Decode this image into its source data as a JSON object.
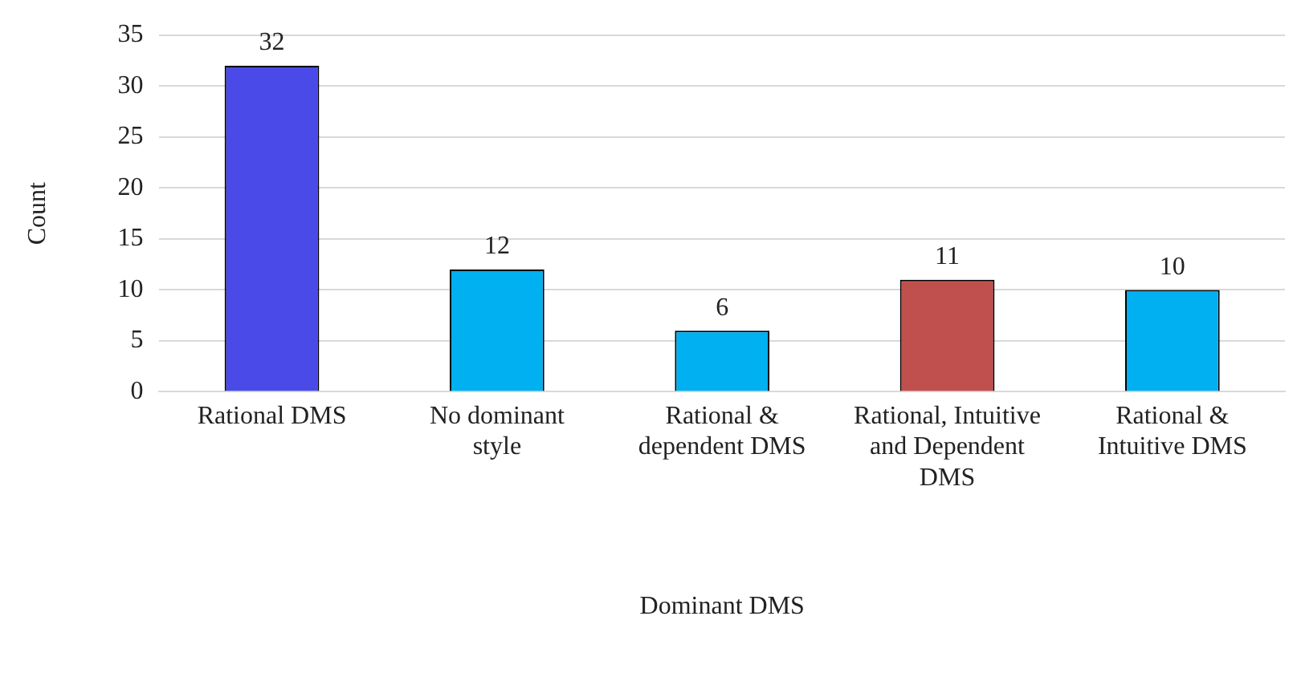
{
  "chart_data": {
    "type": "bar",
    "xlabel": "Dominant DMS",
    "ylabel": "Count",
    "categories": [
      "Rational DMS",
      "No dominant style",
      "Rational & dependent DMS",
      "Rational, Intuitive and Dependent DMS",
      "Rational & Intuitive DMS"
    ],
    "values": [
      32,
      12,
      6,
      11,
      10
    ],
    "colors": [
      "#4a4ae8",
      "#00b0f0",
      "#00b0f0",
      "#c0504d",
      "#00b0f0"
    ],
    "ylim": [
      0,
      35
    ],
    "yticks": [
      0,
      5,
      10,
      15,
      20,
      25,
      30,
      35
    ],
    "grid": "y",
    "data_labels": true,
    "legend": false
  }
}
